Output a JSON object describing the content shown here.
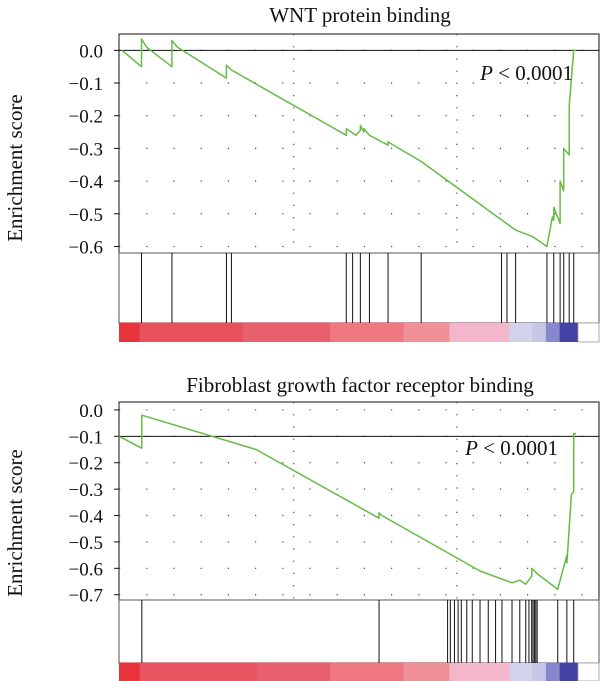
{
  "chart_data": [
    {
      "type": "line",
      "title": "WNT protein binding",
      "ylabel": "Enrichment score",
      "annotation": {
        "italic": "P",
        "rest": " < 0.0001"
      },
      "ylim": [
        -0.62,
        0.05
      ],
      "xlim": [
        0,
        1
      ],
      "yticks": [
        0.0,
        -0.1,
        -0.2,
        -0.3,
        -0.4,
        -0.5,
        -0.6
      ],
      "ytick_labels": [
        "0.0",
        "−0.1",
        "−0.2",
        "−0.3",
        "−0.4",
        "−0.5",
        "−0.6"
      ],
      "series": [
        {
          "color": "#66bb44",
          "x": [
            0,
            0.043,
            0.043,
            0.054,
            0.11,
            0.11,
            0.122,
            0.23,
            0.23,
            0.241,
            0.494,
            0.494,
            0.515,
            0.525,
            0.525,
            0.533,
            0.533,
            0.545,
            0.586,
            0.586,
            0.659,
            0.867,
            0.905,
            0.936,
            0.936,
            0.948,
            0.951,
            0.951,
            0.965,
            0.965,
            0.973,
            0.973,
            0.985,
            0.985,
            0.995,
            1.0
          ],
          "y": [
            0,
            -0.05,
            0.035,
            0.01,
            -0.05,
            0.03,
            0.01,
            -0.085,
            -0.045,
            -0.06,
            -0.26,
            -0.24,
            -0.26,
            -0.245,
            -0.23,
            -0.25,
            -0.24,
            -0.26,
            -0.29,
            -0.28,
            -0.34,
            -0.55,
            -0.57,
            -0.6,
            -0.6,
            -0.51,
            -0.52,
            -0.48,
            -0.53,
            -0.4,
            -0.43,
            -0.3,
            -0.32,
            -0.17,
            0.0,
            0.0
          ]
        }
      ],
      "hits": [
        0.043,
        0.11,
        0.23,
        0.241,
        0.494,
        0.508,
        0.525,
        0.545,
        0.586,
        0.659,
        0.836,
        0.848,
        0.867,
        0.936,
        0.951,
        0.965,
        0.973,
        0.985,
        0.995
      ],
      "color_bar": [
        "#e8323c",
        "#e8515a",
        "#e8505c",
        "#e8606e",
        "#f07880",
        "#f09097",
        "#f4b6ca",
        "#d2d2ea",
        "#c6c6e6",
        "#8787cc",
        "#4343a6"
      ],
      "color_stops": [
        0,
        0.045,
        0.06,
        0.27,
        0.46,
        0.62,
        0.72,
        0.85,
        0.9,
        0.93,
        0.96
      ]
    },
    {
      "type": "line",
      "title": "Fibroblast growth factor receptor binding",
      "ylabel": "Enrichment score",
      "annotation": {
        "italic": "P",
        "rest": " < 0.0001"
      },
      "ylim": [
        -0.72,
        0.03
      ],
      "xlim": [
        0,
        1
      ],
      "yticks": [
        0.0,
        -0.1,
        -0.2,
        -0.3,
        -0.4,
        -0.5,
        -0.6,
        -0.7
      ],
      "ytick_labels": [
        "0.0",
        "−0.1",
        "−0.2",
        "−0.3",
        "−0.4",
        "−0.5",
        "−0.6",
        "−0.7"
      ],
      "series": [
        {
          "color": "#66bb44",
          "x": [
            0,
            0.05,
            0.05,
            0.3,
            0.569,
            0.569,
            0.575,
            0.79,
            0.86,
            0.877,
            0.89,
            0.89,
            0.903,
            0.903,
            0.915,
            0.96,
            0.96,
            0.98,
            0.98,
            0.99,
            0.995,
            0.995,
            1.0
          ],
          "y": [
            -0.1,
            -0.145,
            -0.02,
            -0.15,
            -0.41,
            -0.39,
            -0.4,
            -0.61,
            -0.655,
            -0.645,
            -0.66,
            -0.66,
            -0.63,
            -0.6,
            -0.62,
            -0.68,
            -0.68,
            -0.55,
            -0.58,
            -0.32,
            -0.31,
            -0.09,
            -0.09
          ]
        }
      ],
      "hits": [
        0.05,
        0.569,
        0.719,
        0.725,
        0.734,
        0.742,
        0.749,
        0.761,
        0.773,
        0.79,
        0.808,
        0.824,
        0.838,
        0.86,
        0.877,
        0.89,
        0.897,
        0.903,
        0.906,
        0.909,
        0.912,
        0.915,
        0.96,
        0.98,
        0.995
      ],
      "color_bar": [
        "#e8323c",
        "#e85560",
        "#e8606e",
        "#f07880",
        "#f09097",
        "#f4b6ca",
        "#d2d2ea",
        "#c6c6e6",
        "#8787cc",
        "#4343a6"
      ],
      "color_stops": [
        0,
        0.045,
        0.3,
        0.46,
        0.62,
        0.72,
        0.85,
        0.9,
        0.93,
        0.96
      ]
    }
  ]
}
